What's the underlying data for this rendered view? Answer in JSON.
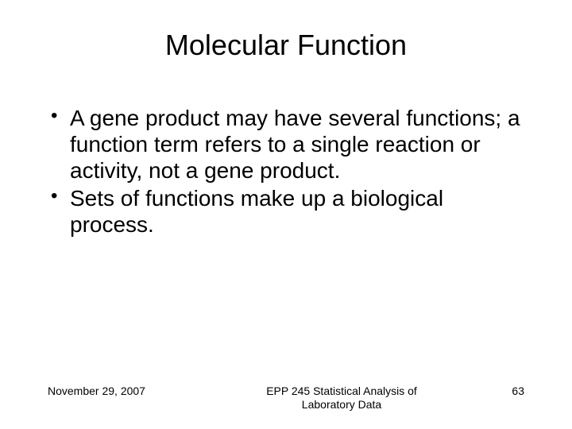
{
  "title": "Molecular Function",
  "bullets": [
    "A gene product may have several functions; a function term refers to a single reaction or activity, not a gene product.",
    "Sets of functions make up a biological process."
  ],
  "footer": {
    "date": "November 29, 2007",
    "course_line1": "EPP 245 Statistical Analysis of",
    "course_line2": "Laboratory Data",
    "page": "63"
  }
}
